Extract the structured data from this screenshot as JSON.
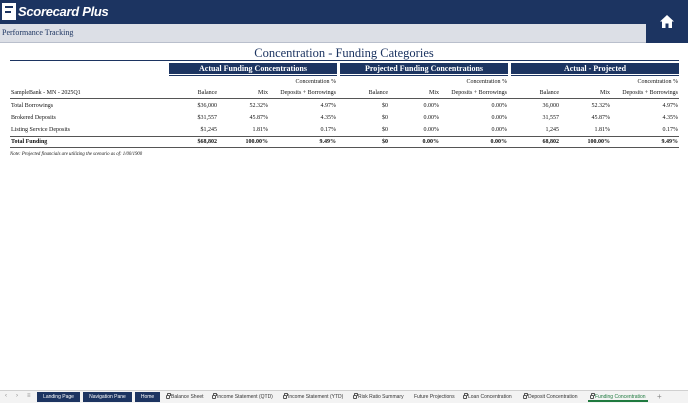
{
  "app": {
    "logo_text": "Scorecard Plus",
    "subtitle": "Performance Tracking",
    "home_icon": "home-icon"
  },
  "report": {
    "title": "Concentration - Funding Categories",
    "groups": {
      "actual": "Actual Funding Concentrations",
      "projected": "Projected Funding Concentrations",
      "diff": "Actual - Projected"
    },
    "columns": {
      "bank": "SampleBank - MN - 2025Q1",
      "balance": "Balance",
      "mix": "Mix",
      "conc_line1": "Concentration %",
      "conc_line2": "Deposits + Borrowings"
    },
    "rows": [
      {
        "label": "Total Borrowings",
        "a_bal": "$36,000",
        "a_mix": "52.32%",
        "a_conc": "4.97%",
        "p_bal": "$0",
        "p_mix": "0.00%",
        "p_conc": "0.00%",
        "d_bal": "36,000",
        "d_mix": "52.32%",
        "d_conc": "4.97%"
      },
      {
        "label": "Brokered Deposits",
        "a_bal": "$31,557",
        "a_mix": "45.87%",
        "a_conc": "4.35%",
        "p_bal": "$0",
        "p_mix": "0.00%",
        "p_conc": "0.00%",
        "d_bal": "31,557",
        "d_mix": "45.87%",
        "d_conc": "4.35%"
      },
      {
        "label": "Listing Service Deposits",
        "a_bal": "$1,245",
        "a_mix": "1.81%",
        "a_conc": "0.17%",
        "p_bal": "$0",
        "p_mix": "0.00%",
        "p_conc": "0.00%",
        "d_bal": "1,245",
        "d_mix": "1.81%",
        "d_conc": "0.17%"
      }
    ],
    "total": {
      "label": "Total Funding",
      "a_bal": "$68,802",
      "a_mix": "100.00%",
      "a_conc": "9.49%",
      "p_bal": "$0",
      "p_mix": "0.00%",
      "p_conc": "0.00%",
      "d_bal": "68,802",
      "d_mix": "100.00%",
      "d_conc": "9.49%"
    },
    "note": "Note: Projected financials are utilizing the  scenario as of: 1/00/1900"
  },
  "tabs": {
    "nav_prev": "‹",
    "nav_next": "›",
    "nav_menu": "≡",
    "add": "+",
    "items": [
      {
        "label": "Landing Page"
      },
      {
        "label": "Navigation Pane"
      },
      {
        "label": "Home"
      },
      {
        "label": "Balance Sheet"
      },
      {
        "label": "Income Statement (QTD)"
      },
      {
        "label": "Income Statement (YTD)"
      },
      {
        "label": "Risk Ratio Summary"
      },
      {
        "label": "Future Projections"
      },
      {
        "label": "Loan Concentration"
      },
      {
        "label": "Deposit Concentration"
      },
      {
        "label": "Funding Concentration"
      }
    ],
    "active": "Funding Concentration"
  }
}
